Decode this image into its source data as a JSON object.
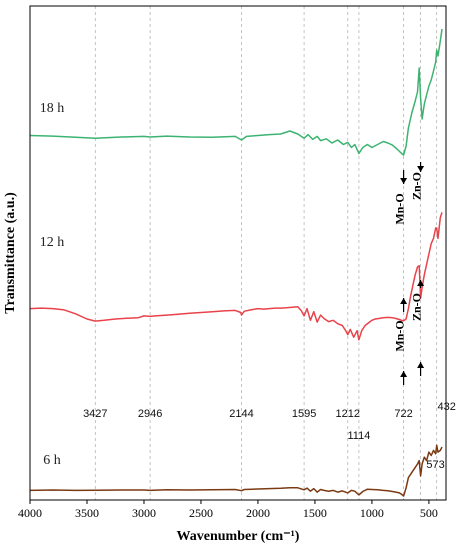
{
  "chart_data": {
    "type": "line",
    "xlabel": "Wavenumber (cm⁻¹)",
    "ylabel": "Transmittance (a.u.)",
    "xlim": [
      4000,
      350
    ],
    "x_ticks": [
      4000,
      3500,
      3000,
      2500,
      2000,
      1500,
      1000,
      500
    ],
    "reference_lines": [
      3427,
      2946,
      2144,
      1595,
      1212,
      1114,
      722,
      573,
      432
    ],
    "peak_labels": [
      "3427",
      "2946",
      "2144",
      "1595",
      "1212",
      "1114",
      "722",
      "573",
      "432"
    ],
    "bond_annotations": [
      "Mn-O",
      "Zn-O",
      "Mn-O",
      "Zn-O"
    ],
    "series": [
      {
        "name": "18 h",
        "color": "#3cb371",
        "x": [
          4000,
          3800,
          3600,
          3427,
          3200,
          3000,
          2946,
          2800,
          2600,
          2400,
          2200,
          2144,
          2100,
          2000,
          1900,
          1800,
          1720,
          1650,
          1595,
          1560,
          1520,
          1480,
          1450,
          1400,
          1350,
          1300,
          1250,
          1212,
          1180,
          1150,
          1114,
          1080,
          1040,
          1000,
          950,
          900,
          860,
          820,
          780,
          740,
          722,
          700,
          680,
          650,
          620,
          600,
          585,
          573,
          560,
          540,
          520,
          500,
          480,
          460,
          440,
          432,
          420,
          400,
          385
        ],
        "values": [
          0.615,
          0.613,
          0.609,
          0.606,
          0.61,
          0.612,
          0.61,
          0.613,
          0.61,
          0.609,
          0.612,
          0.6,
          0.612,
          0.615,
          0.618,
          0.62,
          0.63,
          0.62,
          0.606,
          0.618,
          0.602,
          0.612,
          0.598,
          0.604,
          0.59,
          0.6,
          0.585,
          0.592,
          0.575,
          0.585,
          0.555,
          0.575,
          0.585,
          0.575,
          0.585,
          0.595,
          0.59,
          0.583,
          0.57,
          0.555,
          0.55,
          0.58,
          0.64,
          0.69,
          0.73,
          0.76,
          0.84,
          0.74,
          0.67,
          0.72,
          0.75,
          0.78,
          0.8,
          0.83,
          0.86,
          0.9,
          0.88,
          0.93,
          0.97
        ]
      },
      {
        "name": "12 h",
        "color": "#e8434a",
        "x": [
          4000,
          3900,
          3800,
          3700,
          3600,
          3500,
          3427,
          3350,
          3250,
          3150,
          3050,
          3000,
          2946,
          2900,
          2800,
          2700,
          2600,
          2500,
          2400,
          2300,
          2200,
          2150,
          2144,
          2120,
          2050,
          2000,
          1950,
          1900,
          1850,
          1800,
          1750,
          1700,
          1650,
          1620,
          1595,
          1570,
          1540,
          1510,
          1480,
          1450,
          1420,
          1380,
          1340,
          1300,
          1260,
          1230,
          1212,
          1190,
          1160,
          1130,
          1114,
          1090,
          1060,
          1030,
          1000,
          970,
          940,
          900,
          860,
          820,
          790,
          760,
          740,
          722,
          700,
          680,
          660,
          640,
          620,
          600,
          585,
          573,
          560,
          540,
          520,
          500,
          480,
          460,
          440,
          432,
          420,
          400,
          385
        ],
        "values": [
          0.39,
          0.392,
          0.39,
          0.385,
          0.37,
          0.35,
          0.342,
          0.345,
          0.35,
          0.353,
          0.355,
          0.362,
          0.36,
          0.362,
          0.365,
          0.368,
          0.372,
          0.375,
          0.378,
          0.381,
          0.383,
          0.375,
          0.365,
          0.38,
          0.386,
          0.39,
          0.388,
          0.39,
          0.392,
          0.392,
          0.393,
          0.395,
          0.397,
          0.382,
          0.362,
          0.39,
          0.345,
          0.378,
          0.338,
          0.365,
          0.352,
          0.34,
          0.345,
          0.332,
          0.325,
          0.305,
          0.29,
          0.31,
          0.28,
          0.305,
          0.27,
          0.305,
          0.325,
          0.335,
          0.345,
          0.35,
          0.352,
          0.355,
          0.356,
          0.355,
          0.352,
          0.348,
          0.345,
          0.343,
          0.35,
          0.39,
          0.44,
          0.48,
          0.52,
          0.55,
          0.555,
          0.43,
          0.47,
          0.52,
          0.56,
          0.6,
          0.64,
          0.66,
          0.7,
          0.7,
          0.66,
          0.74,
          0.76
        ]
      },
      {
        "name": "6 h",
        "color": "#7b3a12",
        "x": [
          4000,
          3800,
          3600,
          3427,
          3200,
          3000,
          2946,
          2800,
          2600,
          2400,
          2200,
          2144,
          2120,
          2050,
          2000,
          1900,
          1800,
          1720,
          1650,
          1595,
          1570,
          1540,
          1510,
          1480,
          1450,
          1420,
          1380,
          1340,
          1300,
          1260,
          1212,
          1180,
          1150,
          1114,
          1080,
          1040,
          1000,
          950,
          900,
          860,
          820,
          790,
          760,
          740,
          722,
          700,
          680,
          660,
          640,
          620,
          600,
          585,
          573,
          560,
          540,
          520,
          500,
          480,
          460,
          440,
          432,
          420,
          400,
          385
        ],
        "values": [
          0.045,
          0.047,
          0.045,
          0.046,
          0.047,
          0.047,
          0.045,
          0.048,
          0.047,
          0.048,
          0.05,
          0.043,
          0.05,
          0.052,
          0.053,
          0.055,
          0.057,
          0.06,
          0.06,
          0.048,
          0.058,
          0.04,
          0.055,
          0.035,
          0.05,
          0.045,
          0.04,
          0.045,
          0.035,
          0.042,
          0.03,
          0.045,
          0.04,
          0.018,
          0.038,
          0.052,
          0.05,
          0.048,
          0.045,
          0.043,
          0.038,
          0.035,
          0.03,
          0.022,
          0.012,
          0.06,
          0.12,
          0.14,
          0.16,
          0.18,
          0.2,
          0.22,
          0.13,
          0.2,
          0.24,
          0.22,
          0.27,
          0.25,
          0.28,
          0.26,
          0.31,
          0.27,
          0.28,
          0.3
        ]
      }
    ]
  }
}
